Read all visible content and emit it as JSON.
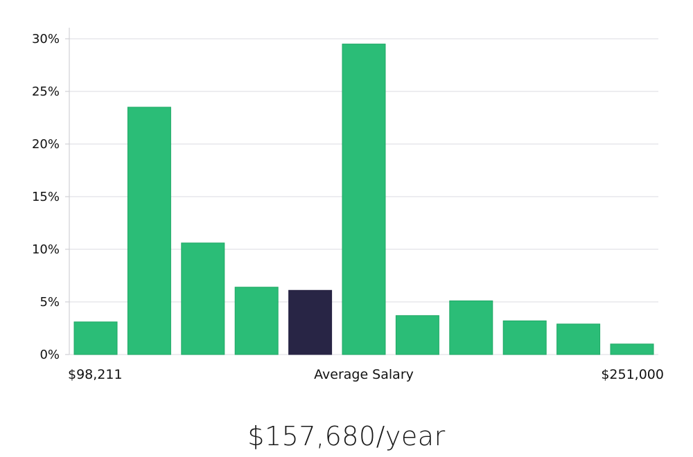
{
  "chart_data": {
    "type": "bar",
    "values": [
      3.1,
      23.5,
      10.6,
      6.4,
      6.1,
      29.5,
      3.7,
      5.1,
      3.2,
      2.9,
      1.0
    ],
    "highlight_index": 4,
    "ylim": [
      0,
      30
    ],
    "yticks": [
      "0%",
      "5%",
      "10%",
      "15%",
      "20%",
      "25%",
      "30%"
    ],
    "ytick_values": [
      0,
      5,
      10,
      15,
      20,
      25,
      30
    ],
    "x_min_label": "$98,211",
    "x_center_label": "Average Salary",
    "x_max_label": "$251,000",
    "grid": true,
    "colors": {
      "bar": "#2bbd77",
      "bar_edge": "#1fa865",
      "highlight": "#282545",
      "grid": "#e2e2e6",
      "axis": "#d0d0d4"
    }
  },
  "salary_label": "$157,680/year"
}
